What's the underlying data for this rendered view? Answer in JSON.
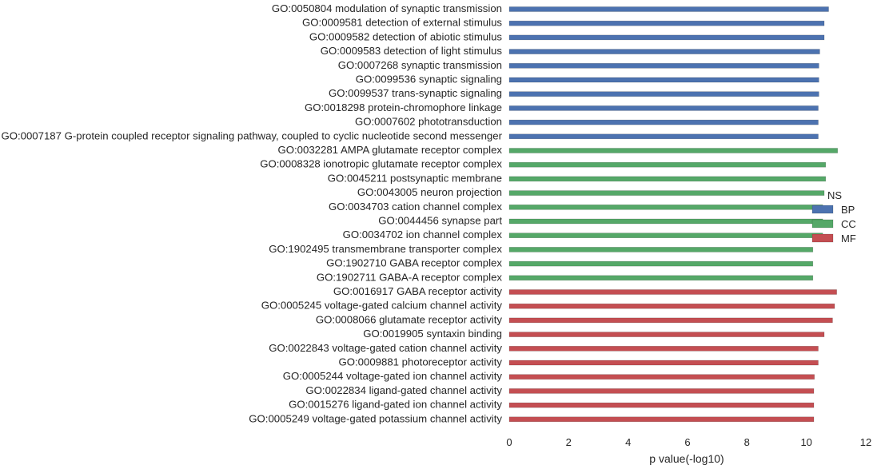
{
  "chart_data": {
    "type": "bar",
    "orientation": "horizontal",
    "xlabel": "p value(-log10)",
    "xlim": [
      0,
      12
    ],
    "xticks": [
      0,
      2,
      4,
      6,
      8,
      10,
      12
    ],
    "grid": false,
    "legend": {
      "title": "NS",
      "placement": "right"
    },
    "colors": {
      "BP": "#4c72b0",
      "CC": "#55a868",
      "MF": "#c44e52"
    },
    "series": [
      {
        "name": "BP",
        "color": "#4c72b0"
      },
      {
        "name": "CC",
        "color": "#55a868"
      },
      {
        "name": "MF",
        "color": "#c44e52"
      }
    ],
    "bars": [
      {
        "label": "GO:0050804 modulation of synaptic transmission",
        "group": "BP",
        "value": 10.75
      },
      {
        "label": "GO:0009581 detection of external stimulus",
        "group": "BP",
        "value": 10.6
      },
      {
        "label": "GO:0009582 detection of abiotic stimulus",
        "group": "BP",
        "value": 10.6
      },
      {
        "label": "GO:0009583 detection of light stimulus",
        "group": "BP",
        "value": 10.45
      },
      {
        "label": "GO:0007268 synaptic transmission",
        "group": "BP",
        "value": 10.42
      },
      {
        "label": "GO:0099536 synaptic signaling",
        "group": "BP",
        "value": 10.42
      },
      {
        "label": "GO:0099537 trans-synaptic signaling",
        "group": "BP",
        "value": 10.42
      },
      {
        "label": "GO:0018298 protein-chromophore linkage",
        "group": "BP",
        "value": 10.4
      },
      {
        "label": "GO:0007602 phototransduction",
        "group": "BP",
        "value": 10.4
      },
      {
        "label": "GO:0007187 G-protein coupled receptor signaling pathway, coupled to cyclic nucleotide second messenger",
        "group": "BP",
        "value": 10.4
      },
      {
        "label": "GO:0032281 AMPA glutamate receptor complex",
        "group": "CC",
        "value": 11.05
      },
      {
        "label": "GO:0008328 ionotropic glutamate receptor complex",
        "group": "CC",
        "value": 10.65
      },
      {
        "label": "GO:0045211 postsynaptic membrane",
        "group": "CC",
        "value": 10.65
      },
      {
        "label": "GO:0043005 neuron projection",
        "group": "CC",
        "value": 10.6
      },
      {
        "label": "GO:0034703 cation channel complex",
        "group": "CC",
        "value": 10.55
      },
      {
        "label": "GO:0044456 synapse part",
        "group": "CC",
        "value": 10.55
      },
      {
        "label": "GO:0034702 ion channel complex",
        "group": "CC",
        "value": 10.55
      },
      {
        "label": "GO:1902495 transmembrane transporter complex",
        "group": "CC",
        "value": 10.22
      },
      {
        "label": "GO:1902710 GABA receptor complex",
        "group": "CC",
        "value": 10.22
      },
      {
        "label": "GO:1902711 GABA-A receptor complex",
        "group": "CC",
        "value": 10.22
      },
      {
        "label": "GO:0016917 GABA receptor activity",
        "group": "MF",
        "value": 11.02
      },
      {
        "label": "GO:0005245 voltage-gated calcium channel activity",
        "group": "MF",
        "value": 10.95
      },
      {
        "label": "GO:0008066 glutamate receptor activity",
        "group": "MF",
        "value": 10.88
      },
      {
        "label": "GO:0019905 syntaxin binding",
        "group": "MF",
        "value": 10.6
      },
      {
        "label": "GO:0022843 voltage-gated cation channel activity",
        "group": "MF",
        "value": 10.4
      },
      {
        "label": "GO:0009881 photoreceptor activity",
        "group": "MF",
        "value": 10.4
      },
      {
        "label": "GO:0005244 voltage-gated ion channel activity",
        "group": "MF",
        "value": 10.27
      },
      {
        "label": "GO:0022834 ligand-gated channel activity",
        "group": "MF",
        "value": 10.25
      },
      {
        "label": "GO:0015276 ligand-gated ion channel activity",
        "group": "MF",
        "value": 10.25
      },
      {
        "label": "GO:0005249 voltage-gated potassium channel activity",
        "group": "MF",
        "value": 10.25
      }
    ]
  }
}
